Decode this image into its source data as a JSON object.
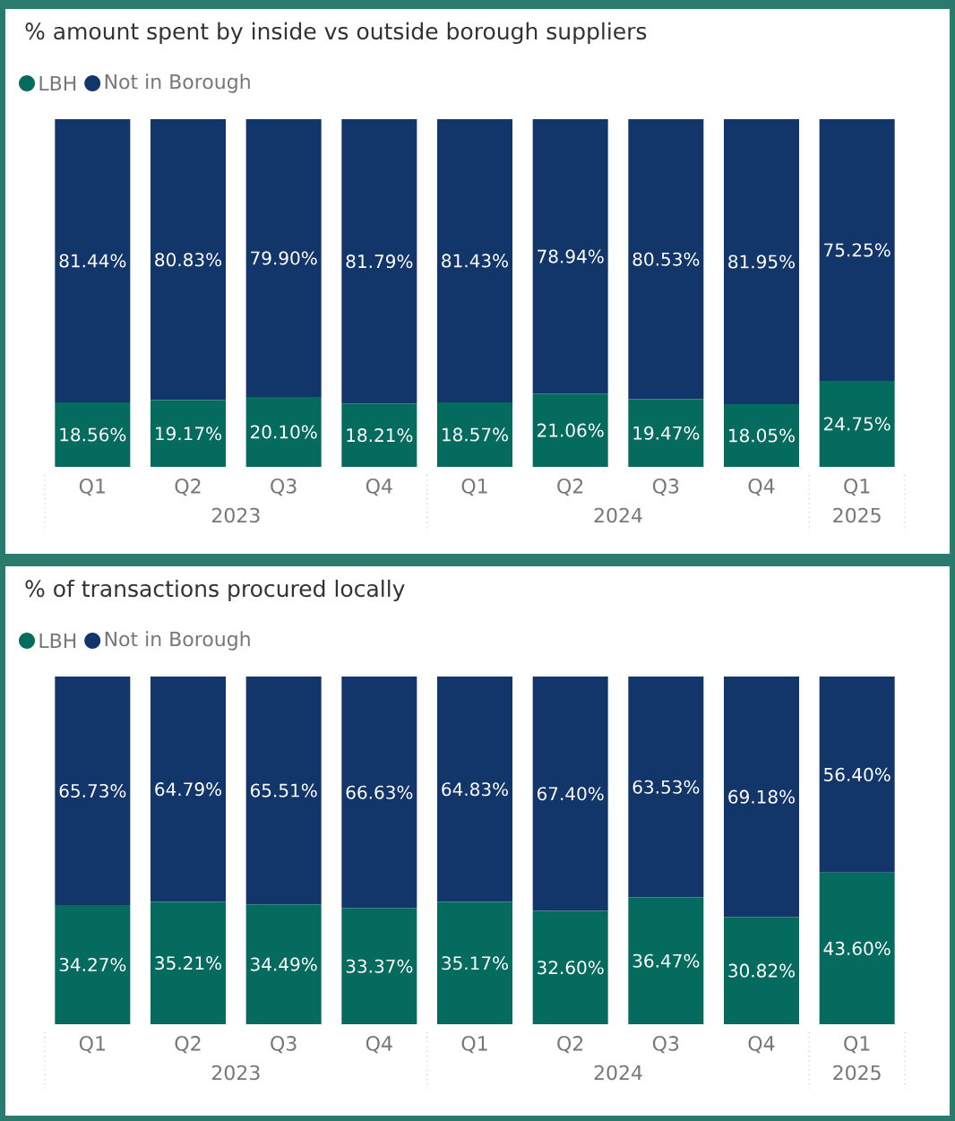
{
  "chart_data": [
    {
      "type": "bar",
      "title": "% amount spent by inside vs outside borough suppliers",
      "stacked": true,
      "legend": "top left",
      "tick_labels": "x",
      "categories": [
        "Q1",
        "Q2",
        "Q3",
        "Q4",
        "Q1",
        "Q2",
        "Q3",
        "Q4",
        "Q1"
      ],
      "annotations": [
        "2023",
        "2024",
        "2025"
      ],
      "series": [
        {
          "name": "LBH",
          "color": "#066b5f",
          "values": [
            18.56,
            19.17,
            20.1,
            18.21,
            18.57,
            21.06,
            19.47,
            18.05,
            24.75
          ],
          "value_labels": [
            "18.56%",
            "19.17%",
            "20.10%",
            "18.21%",
            "18.57%",
            "21.06%",
            "19.47%",
            "18.05%",
            "24.75%"
          ]
        },
        {
          "name": "Not in Borough",
          "color": "#12356a",
          "values": [
            81.44,
            80.83,
            79.9,
            81.79,
            81.43,
            78.94,
            80.53,
            81.95,
            75.25
          ],
          "value_labels": [
            "81.44%",
            "80.83%",
            "79.90%",
            "81.79%",
            "81.43%",
            "78.94%",
            "80.53%",
            "81.95%",
            "75.25%"
          ]
        }
      ]
    },
    {
      "type": "bar",
      "title": "% of transactions procured locally",
      "stacked": true,
      "legend": "top left",
      "tick_labels": "x",
      "categories": [
        "Q1",
        "Q2",
        "Q3",
        "Q4",
        "Q1",
        "Q2",
        "Q3",
        "Q4",
        "Q1"
      ],
      "annotations": [
        "2023",
        "2024",
        "2025"
      ],
      "series": [
        {
          "name": "LBH",
          "color": "#066b5f",
          "values": [
            34.27,
            35.21,
            34.49,
            33.37,
            35.17,
            32.6,
            36.47,
            30.82,
            43.6
          ],
          "value_labels": [
            "34.27%",
            "35.21%",
            "34.49%",
            "33.37%",
            "35.17%",
            "32.60%",
            "36.47%",
            "30.82%",
            "43.60%"
          ]
        },
        {
          "name": "Not in Borough",
          "color": "#12356a",
          "values": [
            65.73,
            64.79,
            65.51,
            66.63,
            64.83,
            67.4,
            63.53,
            69.18,
            56.4
          ],
          "value_labels": [
            "65.73%",
            "64.79%",
            "65.51%",
            "66.63%",
            "64.83%",
            "67.40%",
            "63.53%",
            "69.18%",
            "56.40%"
          ]
        }
      ]
    }
  ]
}
